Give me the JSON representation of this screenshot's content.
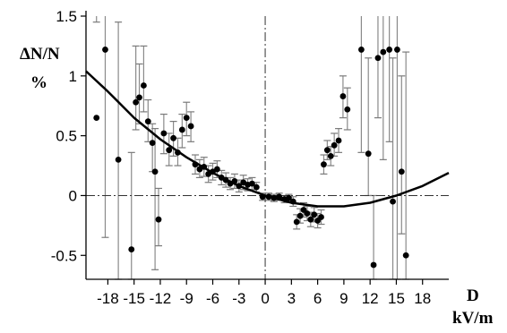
{
  "chart_data": {
    "type": "scatter",
    "ylabel": "ΔN/N",
    "yunit": "%",
    "xlabel": "D",
    "xunit": "kV/m",
    "xlim": [
      -20.5,
      21
    ],
    "ylim": [
      -0.7,
      1.5
    ],
    "x_ticks": [
      -18,
      -15,
      -12,
      -9,
      -6,
      -3,
      0,
      3,
      6,
      9,
      12,
      15,
      18
    ],
    "x_tick_labels": [
      "-18",
      "-15",
      "-12",
      "-9",
      "-6",
      "-3",
      "0",
      "3",
      "6",
      "9",
      "12",
      "15",
      "18"
    ],
    "y_ticks": [
      1.5,
      1,
      0.5,
      0,
      -0.5
    ],
    "y_tick_labels": [
      "1.5",
      "1",
      "0.5",
      "0",
      "-0.5"
    ],
    "grid": false,
    "reference_lines": {
      "horizontal": 0,
      "vertical": 0,
      "style": "dash-dot"
    },
    "fit_curve": {
      "description": "parabolic fit",
      "x": [
        -20.5,
        -18,
        -15,
        -12,
        -9,
        -6,
        -3,
        0,
        3,
        6,
        9,
        12,
        15,
        18,
        21
      ],
      "y": [
        1.04,
        0.87,
        0.65,
        0.47,
        0.32,
        0.19,
        0.08,
        0.0,
        -0.06,
        -0.09,
        -0.09,
        -0.06,
        0.0,
        0.08,
        0.19
      ]
    },
    "points": [
      {
        "x": -19.3,
        "y": 0.65,
        "yerr_low": 1.45,
        "yerr_high": 1.58
      },
      {
        "x": -18.3,
        "y": 1.22,
        "yerr_low": -0.35,
        "yerr_high": 1.55
      },
      {
        "x": -16.8,
        "y": 0.3,
        "yerr_low": -0.7,
        "yerr_high": 1.45
      },
      {
        "x": -15.3,
        "y": -0.45,
        "yerr_low": -0.7,
        "yerr_high": 0.36
      },
      {
        "x": -14.8,
        "y": 0.78,
        "yerr_low": 0.55,
        "yerr_high": 1.25
      },
      {
        "x": -14.4,
        "y": 0.82,
        "yerr_low": 0.6,
        "yerr_high": 1.1
      },
      {
        "x": -13.9,
        "y": 0.92,
        "yerr_low": 0.7,
        "yerr_high": 1.25
      },
      {
        "x": -13.4,
        "y": 0.62,
        "yerr_low": 0.45,
        "yerr_high": 0.8
      },
      {
        "x": -12.9,
        "y": 0.44,
        "yerr_low": 0.2,
        "yerr_high": 0.6
      },
      {
        "x": -12.6,
        "y": 0.2,
        "yerr_low": -0.62,
        "yerr_high": 0.56
      },
      {
        "x": -12.2,
        "y": -0.2,
        "yerr_low": -0.42,
        "yerr_high": 0.06
      },
      {
        "x": -11.6,
        "y": 0.52,
        "yerr_low": 0.35,
        "yerr_high": 0.68
      },
      {
        "x": -11.0,
        "y": 0.38,
        "yerr_low": 0.25,
        "yerr_high": 0.52
      },
      {
        "x": -10.5,
        "y": 0.48,
        "yerr_low": 0.33,
        "yerr_high": 0.62
      },
      {
        "x": -10.0,
        "y": 0.36,
        "yerr_low": 0.25,
        "yerr_high": 0.48
      },
      {
        "x": -9.5,
        "y": 0.55,
        "yerr_low": 0.4,
        "yerr_high": 0.68
      },
      {
        "x": -9.0,
        "y": 0.65,
        "yerr_low": 0.5,
        "yerr_high": 0.78
      },
      {
        "x": -8.5,
        "y": 0.58,
        "yerr_low": 0.45,
        "yerr_high": 0.7
      },
      {
        "x": -8.0,
        "y": 0.26,
        "yerr_low": 0.18,
        "yerr_high": 0.34
      },
      {
        "x": -7.5,
        "y": 0.22,
        "yerr_low": 0.15,
        "yerr_high": 0.3
      },
      {
        "x": -7.0,
        "y": 0.24,
        "yerr_low": 0.16,
        "yerr_high": 0.32
      },
      {
        "x": -6.5,
        "y": 0.18,
        "yerr_low": 0.11,
        "yerr_high": 0.25
      },
      {
        "x": -6.0,
        "y": 0.2,
        "yerr_low": 0.13,
        "yerr_high": 0.27
      },
      {
        "x": -5.5,
        "y": 0.22,
        "yerr_low": 0.15,
        "yerr_high": 0.29
      },
      {
        "x": -5.0,
        "y": 0.15,
        "yerr_low": 0.09,
        "yerr_high": 0.21
      },
      {
        "x": -4.5,
        "y": 0.13,
        "yerr_low": 0.07,
        "yerr_high": 0.19
      },
      {
        "x": -4.0,
        "y": 0.1,
        "yerr_low": 0.05,
        "yerr_high": 0.15
      },
      {
        "x": -3.5,
        "y": 0.12,
        "yerr_low": 0.06,
        "yerr_high": 0.18
      },
      {
        "x": -3.0,
        "y": 0.08,
        "yerr_low": 0.03,
        "yerr_high": 0.13
      },
      {
        "x": -2.5,
        "y": 0.11,
        "yerr_low": 0.05,
        "yerr_high": 0.17
      },
      {
        "x": -2.0,
        "y": 0.09,
        "yerr_low": 0.04,
        "yerr_high": 0.14
      },
      {
        "x": -1.5,
        "y": 0.1,
        "yerr_low": 0.05,
        "yerr_high": 0.15
      },
      {
        "x": -1.0,
        "y": 0.07,
        "yerr_low": 0.03,
        "yerr_high": 0.11
      },
      {
        "x": -0.3,
        "y": -0.01,
        "yerr_low": -0.04,
        "yerr_high": 0.02
      },
      {
        "x": 0.4,
        "y": -0.01,
        "yerr_low": -0.04,
        "yerr_high": 0.02
      },
      {
        "x": 1.0,
        "y": -0.02,
        "yerr_low": -0.05,
        "yerr_high": 0.01
      },
      {
        "x": 1.6,
        "y": -0.01,
        "yerr_low": -0.04,
        "yerr_high": 0.02
      },
      {
        "x": 2.2,
        "y": -0.03,
        "yerr_low": -0.06,
        "yerr_high": 0.0
      },
      {
        "x": 2.7,
        "y": -0.02,
        "yerr_low": -0.05,
        "yerr_high": 0.01
      },
      {
        "x": 3.2,
        "y": -0.05,
        "yerr_low": -0.09,
        "yerr_high": -0.01
      },
      {
        "x": 3.6,
        "y": -0.22,
        "yerr_low": -0.28,
        "yerr_high": -0.16
      },
      {
        "x": 4.0,
        "y": -0.17,
        "yerr_low": -0.23,
        "yerr_high": -0.11
      },
      {
        "x": 4.4,
        "y": -0.12,
        "yerr_low": -0.18,
        "yerr_high": -0.06
      },
      {
        "x": 4.8,
        "y": -0.15,
        "yerr_low": -0.21,
        "yerr_high": -0.09
      },
      {
        "x": 5.2,
        "y": -0.2,
        "yerr_low": -0.26,
        "yerr_high": -0.14
      },
      {
        "x": 5.6,
        "y": -0.16,
        "yerr_low": -0.22,
        "yerr_high": -0.1
      },
      {
        "x": 6.0,
        "y": -0.21,
        "yerr_low": -0.27,
        "yerr_high": -0.15
      },
      {
        "x": 6.4,
        "y": -0.18,
        "yerr_low": -0.24,
        "yerr_high": -0.12
      },
      {
        "x": 6.7,
        "y": 0.26,
        "yerr_low": 0.18,
        "yerr_high": 0.34
      },
      {
        "x": 7.1,
        "y": 0.38,
        "yerr_low": 0.3,
        "yerr_high": 0.46
      },
      {
        "x": 7.5,
        "y": 0.33,
        "yerr_low": 0.25,
        "yerr_high": 0.41
      },
      {
        "x": 7.9,
        "y": 0.42,
        "yerr_low": 0.33,
        "yerr_high": 0.52
      },
      {
        "x": 8.4,
        "y": 0.46,
        "yerr_low": 0.36,
        "yerr_high": 0.56
      },
      {
        "x": 8.9,
        "y": 0.83,
        "yerr_low": 0.65,
        "yerr_high": 1.0
      },
      {
        "x": 9.4,
        "y": 0.72,
        "yerr_low": 0.55,
        "yerr_high": 0.9
      },
      {
        "x": 11.0,
        "y": 1.22,
        "yerr_low": 0.36,
        "yerr_high": 1.55
      },
      {
        "x": 11.8,
        "y": 0.35,
        "yerr_low": 0.0,
        "yerr_high": 1.15
      },
      {
        "x": 12.4,
        "y": -0.58,
        "yerr_low": -0.7,
        "yerr_high": 0.0
      },
      {
        "x": 12.9,
        "y": 1.15,
        "yerr_low": 0.65,
        "yerr_high": 1.55
      },
      {
        "x": 13.5,
        "y": 1.2,
        "yerr_low": 0.3,
        "yerr_high": 1.55
      },
      {
        "x": 14.2,
        "y": 1.22,
        "yerr_low": 0.45,
        "yerr_high": 1.55
      },
      {
        "x": 14.6,
        "y": -0.05,
        "yerr_low": -0.7,
        "yerr_high": 1.15
      },
      {
        "x": 15.1,
        "y": 1.22,
        "yerr_low": -0.7,
        "yerr_high": 1.55
      },
      {
        "x": 15.6,
        "y": 0.2,
        "yerr_low": -0.32,
        "yerr_high": 1.0
      },
      {
        "x": 16.1,
        "y": -0.5,
        "yerr_low": -0.7,
        "yerr_high": 1.2
      }
    ]
  }
}
